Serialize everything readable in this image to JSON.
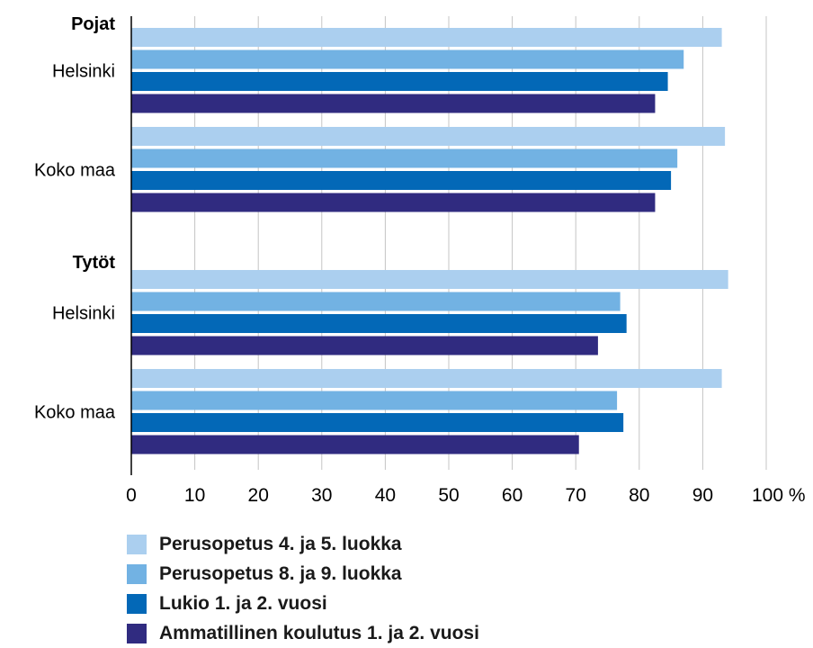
{
  "chart_data": {
    "type": "bar",
    "orientation": "horizontal",
    "title": "",
    "xlabel": "",
    "ylabel": "",
    "x_unit": "%",
    "xlim": [
      0,
      100
    ],
    "xticks": [
      0,
      10,
      20,
      30,
      40,
      50,
      60,
      70,
      80,
      90,
      100
    ],
    "xtick_labels": [
      "0",
      "10",
      "20",
      "30",
      "40",
      "50",
      "60",
      "70",
      "80",
      "90",
      "100 %"
    ],
    "grid": "vertical",
    "legend_position": "bottom",
    "groups": [
      {
        "heading": "Pojat",
        "rows": [
          {
            "label": "Helsinki",
            "values": [
              93,
              87,
              84.5,
              82.5
            ]
          },
          {
            "label": "Koko maa",
            "values": [
              93.5,
              86,
              85,
              82.5
            ]
          }
        ]
      },
      {
        "heading": "Tytöt",
        "rows": [
          {
            "label": "Helsinki",
            "values": [
              94,
              77,
              78,
              73.5
            ]
          },
          {
            "label": "Koko maa",
            "values": [
              93,
              76.5,
              77.5,
              70.5
            ]
          }
        ]
      }
    ],
    "series": [
      {
        "name": "Perusopetus 4. ja 5. luokka",
        "color": "#abcfef"
      },
      {
        "name": "Perusopetus 8. ja 9. luokka",
        "color": "#72b2e3"
      },
      {
        "name": "Lukio 1. ja 2. vuosi",
        "color": "#0368b7"
      },
      {
        "name": "Ammatillinen koulutus 1. ja 2. vuosi",
        "color": "#302b80"
      }
    ]
  }
}
